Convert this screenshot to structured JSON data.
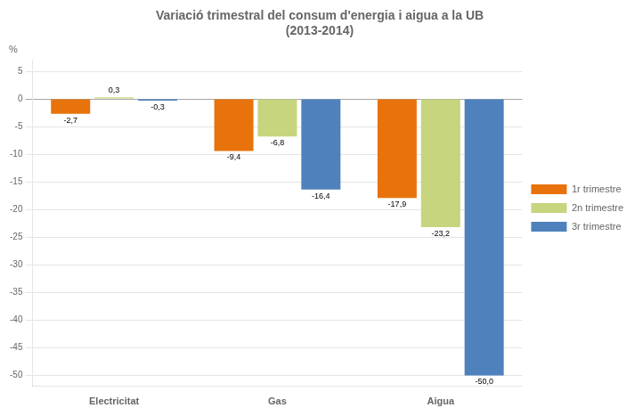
{
  "chart_data": {
    "type": "bar",
    "title": "Variació trimestral del consum d'energia i aigua a la UB",
    "subtitle": "(2013-2014)",
    "ylabel": "%",
    "categories": [
      "Electricitat",
      "Gas",
      "Aigua"
    ],
    "series": [
      {
        "name": "1r trimestre",
        "color": "#E8720C",
        "values": [
          -2.7,
          -9.4,
          -17.9
        ],
        "value_labels": [
          "-2,7",
          "-9,4",
          "-17,9"
        ]
      },
      {
        "name": "2n trimestre",
        "color": "#C6D57E",
        "values": [
          0.3,
          -6.8,
          -23.2
        ],
        "value_labels": [
          "0,3",
          "-6,8",
          "-23,2"
        ]
      },
      {
        "name": "3r trimestre",
        "color": "#4F81BD",
        "values": [
          -0.3,
          -16.4,
          -50.0
        ],
        "value_labels": [
          "-0,3",
          "-16,4",
          "-50,0"
        ]
      }
    ],
    "ylim": [
      -52,
      7
    ],
    "yticks": [
      5,
      0,
      -5,
      -10,
      -15,
      -20,
      -25,
      -30,
      -35,
      -40,
      -45,
      -50
    ],
    "grid": true,
    "legend": "right",
    "data_labels": true
  }
}
